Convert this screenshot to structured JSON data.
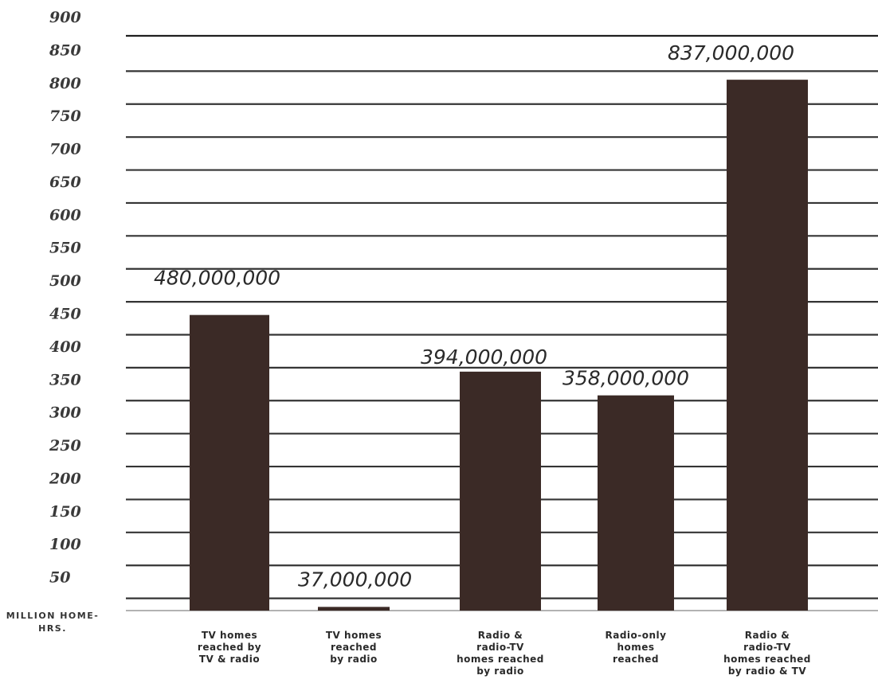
{
  "chart_data": {
    "type": "bar",
    "title": "",
    "ylabel": "MILLION HOME-HRS.",
    "xlabel": "",
    "ylim": [
      0,
      900
    ],
    "yticks": [
      50,
      100,
      150,
      200,
      250,
      300,
      350,
      400,
      450,
      500,
      550,
      600,
      650,
      700,
      750,
      800,
      850,
      900
    ],
    "grid": true,
    "categories": [
      "TV homes\nreached by\nTV & radio",
      "TV homes\nreached\nby radio",
      "Radio &\nradio-TV\nhomes reached\nby radio",
      "Radio-only\nhomes\nreached",
      "Radio &\nradio-TV\nhomes reached\nby radio & TV"
    ],
    "values": [
      480000000,
      37000000,
      394000000,
      358000000,
      837000000
    ],
    "data_labels": [
      "480,000,000",
      "37,000,000",
      "394,000,000",
      "358,000,000",
      "837,000,000"
    ],
    "colors": {
      "bar": "#3b2a26",
      "grid": "#1f1f1f",
      "ticks": "#3a3a3a",
      "labels": "#2a2a2a"
    }
  }
}
